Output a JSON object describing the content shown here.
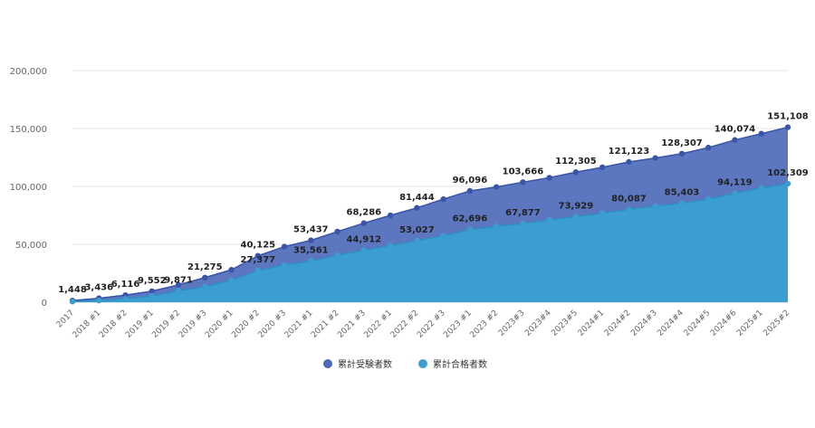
{
  "chart_data": {
    "type": "area",
    "categories": [
      "2017",
      "2018 #1",
      "2018 #2",
      "2019 #1",
      "2019 #2",
      "2019 #3",
      "2020 #1",
      "2020 #2",
      "2020 #3",
      "2021 #1",
      "2021 #2",
      "2021 #3",
      "2022 #1",
      "2022 #2",
      "2022 #3",
      "2023 #1",
      "2023 #2",
      "2023#3",
      "2023#4",
      "2023#5",
      "2024#1",
      "2024#2",
      "2024#3",
      "2024#4",
      "2024#5",
      "2024#6",
      "2025#1",
      "2025#2"
    ],
    "ylim": [
      0,
      200000
    ],
    "yticks": [
      0,
      50000,
      100000,
      150000,
      200000
    ],
    "ytick_labels": [
      "0",
      "50,000",
      "100,000",
      "150,000",
      "200,000"
    ],
    "grid": true,
    "legend_position": "bottom",
    "series": [
      {
        "name": "累計受験者数",
        "color": "#4A67B8",
        "values": [
          1448,
          3436,
          6116,
          9552,
          15000,
          21275,
          28000,
          40125,
          48000,
          53437,
          61000,
          68286,
          75000,
          81444,
          89000,
          96096,
          99500,
          103666,
          107500,
          112305,
          116500,
          121123,
          124500,
          128307,
          133500,
          140074,
          145500,
          151108
        ],
        "labels": [
          "1,448",
          "3,436",
          "6,116",
          "9,552",
          "",
          "21,275",
          "",
          "40,125",
          "",
          "53,437",
          "",
          "68,286",
          "",
          "81,444",
          "",
          "96,096",
          "",
          "103,666",
          "",
          "112,305",
          "",
          "121,123",
          "",
          "128,307",
          "",
          "140,074",
          "",
          "151,108"
        ]
      },
      {
        "name": "累計合格者数",
        "color": "#3B9DD0",
        "values": [
          600,
          1500,
          3000,
          5500,
          9871,
          13500,
          19000,
          27377,
          32000,
          35561,
          40500,
          44912,
          49000,
          53027,
          57500,
          62696,
          65500,
          67877,
          71000,
          73929,
          77000,
          80087,
          83000,
          85403,
          89000,
          94119,
          98500,
          102309
        ],
        "labels": [
          "",
          "",
          "",
          "",
          "9,871",
          "",
          "",
          "27,377",
          "",
          "35,561",
          "",
          "44,912",
          "",
          "53,027",
          "",
          "62,696",
          "",
          "67,877",
          "",
          "73,929",
          "",
          "80,087",
          "",
          "85,403",
          "",
          "94,119",
          "",
          "102,309"
        ]
      }
    ]
  }
}
